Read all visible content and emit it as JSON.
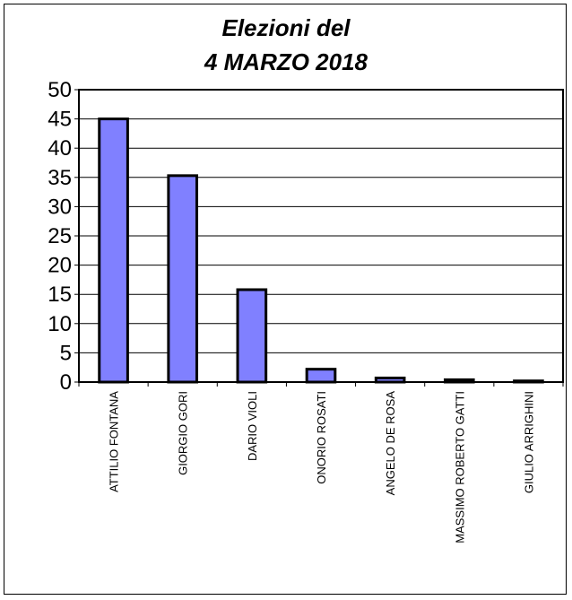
{
  "chart_data": {
    "type": "bar",
    "title_lines": [
      "Elezioni del",
      "4 MARZO 2018"
    ],
    "categories": [
      "ATTILIO FONTANA",
      "GIORGIO GORI",
      "DARIO VIOLI",
      "ONORIO ROSATI",
      "ANGELO DE ROSA",
      "MASSIMO ROBERTO GATTI",
      "GIULIO ARRIGHINI"
    ],
    "values": [
      45.0,
      35.3,
      15.8,
      2.2,
      0.7,
      0.4,
      0.2
    ],
    "ylim": [
      0,
      50
    ],
    "yticks": [
      "0",
      "5",
      "10",
      "15",
      "20",
      "25",
      "30",
      "35",
      "40",
      "45",
      "50"
    ],
    "grid": true,
    "legend": "none",
    "colors": {
      "bar_fill": "#8080ff",
      "bar_stroke": "#000000",
      "grid": "#000000",
      "background": "#ffffff"
    }
  }
}
